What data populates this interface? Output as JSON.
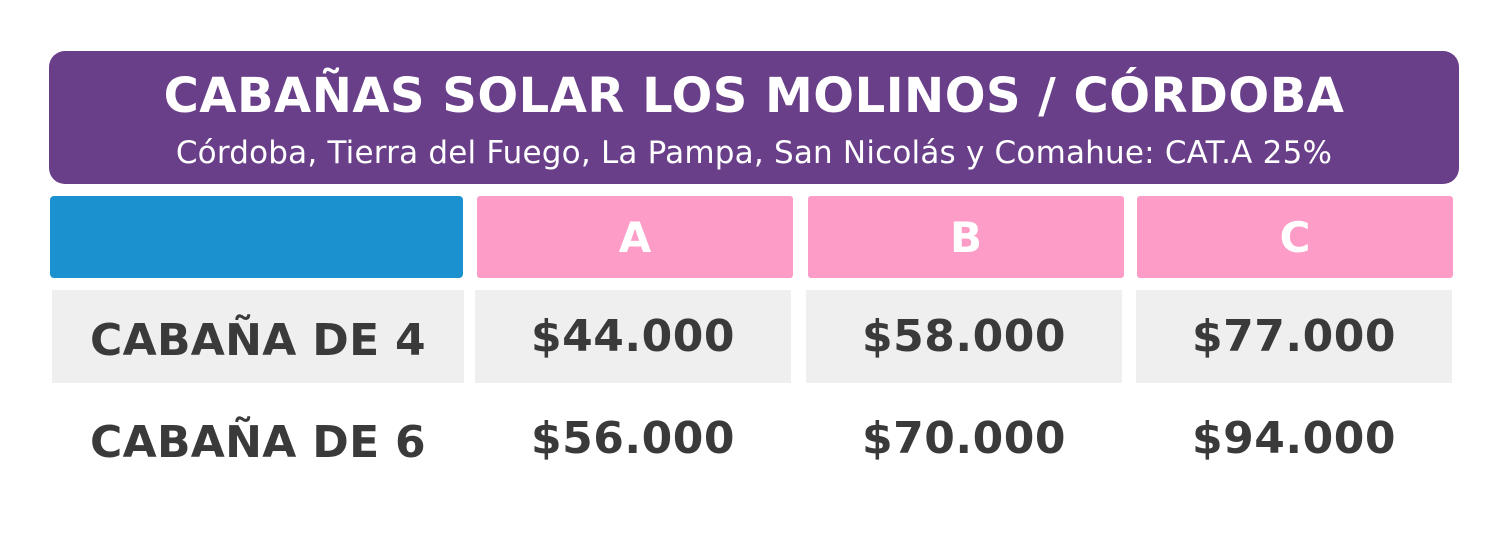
{
  "banner": {
    "title": "CABAÑAS SOLAR LOS MOLINOS / CÓRDOBA",
    "subtitle": "Córdoba, Tierra del Fuego, La Pampa, San Nicolás y Comahue: CAT.A 25%"
  },
  "table": {
    "columns": [
      "A",
      "B",
      "C"
    ],
    "rows": [
      {
        "label": "CABAÑA DE 4",
        "values": [
          "$44.000",
          "$58.000",
          "$77.000"
        ]
      },
      {
        "label": "CABAÑA DE 6",
        "values": [
          "$56.000",
          "$70.000",
          "$94.000"
        ]
      }
    ]
  },
  "colors": {
    "banner": "#6a3f8a",
    "header_blank": "#1b91cf",
    "header_category": "#fe9cc8",
    "row_shade": "#efefef",
    "text": "#3a3a3a"
  }
}
